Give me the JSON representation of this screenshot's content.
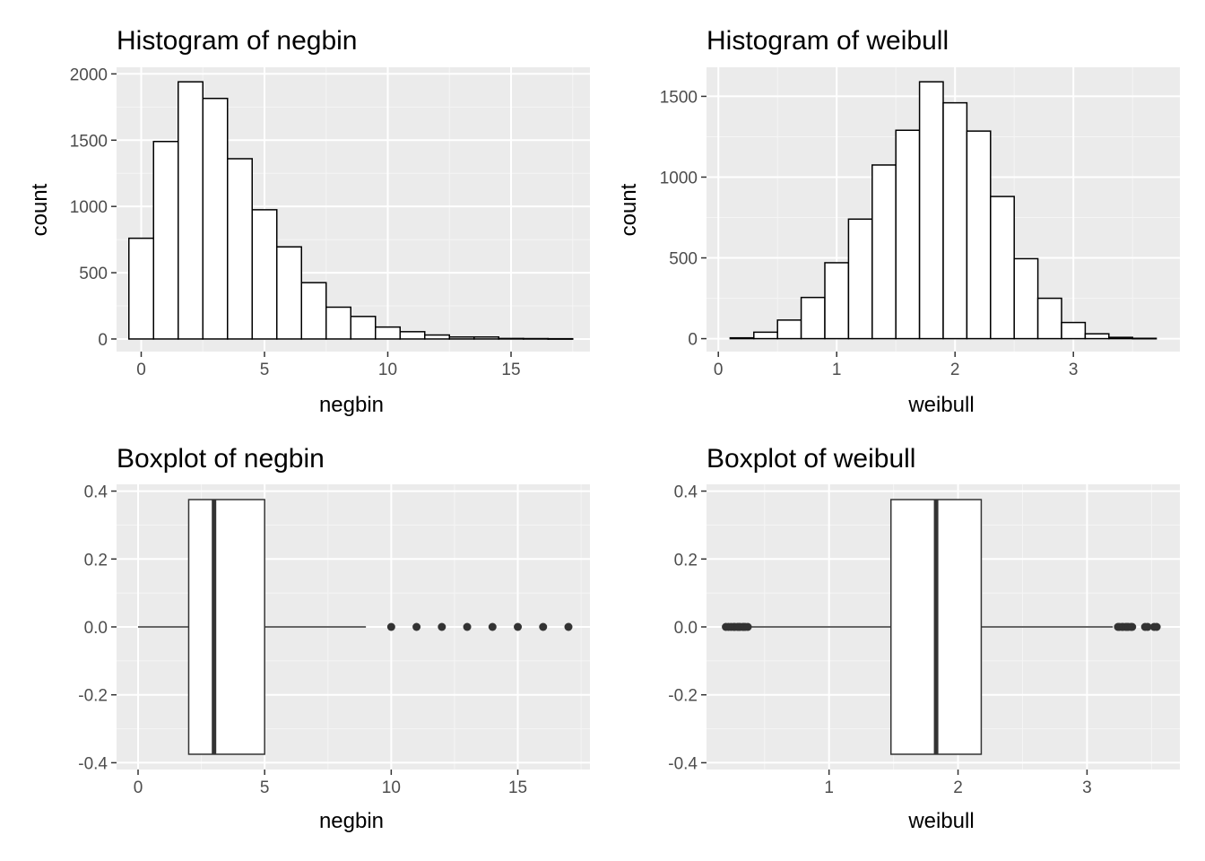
{
  "chart_data": [
    {
      "type": "histogram",
      "title": "Histogram of negbin",
      "xlabel": "negbin",
      "ylabel": "count",
      "xlim": [
        -1,
        18.2
      ],
      "ylim": [
        -95,
        2050
      ],
      "xticks": [
        0,
        5,
        10,
        15
      ],
      "yticks": [
        0,
        500,
        1000,
        1500,
        2000
      ],
      "binwidth": 1,
      "bins": [
        {
          "x": 0,
          "count": 760
        },
        {
          "x": 1,
          "count": 1490
        },
        {
          "x": 2,
          "count": 1940
        },
        {
          "x": 3,
          "count": 1815
        },
        {
          "x": 4,
          "count": 1360
        },
        {
          "x": 5,
          "count": 975
        },
        {
          "x": 6,
          "count": 695
        },
        {
          "x": 7,
          "count": 425
        },
        {
          "x": 8,
          "count": 240
        },
        {
          "x": 9,
          "count": 170
        },
        {
          "x": 10,
          "count": 90
        },
        {
          "x": 11,
          "count": 55
        },
        {
          "x": 12,
          "count": 30
        },
        {
          "x": 13,
          "count": 15
        },
        {
          "x": 14,
          "count": 15
        },
        {
          "x": 15,
          "count": 4
        },
        {
          "x": 16,
          "count": 3
        },
        {
          "x": 17,
          "count": 2
        }
      ],
      "grid": true,
      "fill": "#ffffff",
      "stroke": "#000000",
      "panel_bg": "#ebebeb"
    },
    {
      "type": "histogram",
      "title": "Histogram of weibull",
      "xlabel": "weibull",
      "ylabel": "count",
      "xlim": [
        -0.1,
        3.9
      ],
      "ylim": [
        -80,
        1680
      ],
      "xticks": [
        0,
        1,
        2,
        3
      ],
      "yticks": [
        0,
        500,
        1000,
        1500
      ],
      "binwidth": 0.2,
      "bins": [
        {
          "x": 0.2,
          "count": 5
        },
        {
          "x": 0.4,
          "count": 40
        },
        {
          "x": 0.6,
          "count": 115
        },
        {
          "x": 0.8,
          "count": 255
        },
        {
          "x": 1.0,
          "count": 470
        },
        {
          "x": 1.2,
          "count": 740
        },
        {
          "x": 1.4,
          "count": 1075
        },
        {
          "x": 1.6,
          "count": 1290
        },
        {
          "x": 1.8,
          "count": 1590
        },
        {
          "x": 2.0,
          "count": 1460
        },
        {
          "x": 2.2,
          "count": 1285
        },
        {
          "x": 2.4,
          "count": 880
        },
        {
          "x": 2.6,
          "count": 495
        },
        {
          "x": 2.8,
          "count": 250
        },
        {
          "x": 3.0,
          "count": 100
        },
        {
          "x": 3.2,
          "count": 30
        },
        {
          "x": 3.4,
          "count": 8
        },
        {
          "x": 3.6,
          "count": 2
        }
      ],
      "grid": true,
      "fill": "#ffffff",
      "stroke": "#000000",
      "panel_bg": "#ebebeb"
    },
    {
      "type": "boxplot",
      "title": "Boxplot of negbin",
      "xlabel": "negbin",
      "ylabel": "",
      "xlim": [
        -0.85,
        17.85
      ],
      "ylim": [
        -0.42,
        0.42
      ],
      "xticks": [
        0,
        5,
        10,
        15
      ],
      "yticks": [
        -0.4,
        -0.2,
        0.0,
        0.2,
        0.4
      ],
      "ytick_labels": [
        "-0.4",
        "-0.2",
        "0.0",
        "0.2",
        "0.4"
      ],
      "box": {
        "whisker_low": 0,
        "q1": 2,
        "median": 3,
        "q3": 5,
        "whisker_high": 9,
        "box_low": -0.375,
        "box_high": 0.375
      },
      "outliers": [
        10,
        11,
        12,
        13,
        14,
        15,
        16,
        17
      ],
      "grid": true,
      "panel_bg": "#ebebeb"
    },
    {
      "type": "boxplot",
      "title": "Boxplot of weibull",
      "xlabel": "weibull",
      "ylabel": "",
      "xlim": [
        0.05,
        3.72
      ],
      "ylim": [
        -0.42,
        0.42
      ],
      "xticks": [
        1,
        2,
        3
      ],
      "yticks": [
        -0.4,
        -0.2,
        0.0,
        0.2,
        0.4
      ],
      "ytick_labels": [
        "-0.4",
        "-0.2",
        "0.0",
        "0.2",
        "0.4"
      ],
      "box": {
        "whisker_low": 0.38,
        "q1": 1.48,
        "median": 1.83,
        "q3": 2.18,
        "whisker_high": 3.2,
        "box_low": -0.375,
        "box_high": 0.375
      },
      "outliers": [
        0.2,
        0.22,
        0.24,
        0.26,
        0.27,
        0.29,
        0.3,
        0.31,
        0.33,
        0.34,
        0.35,
        0.37,
        3.24,
        3.25,
        3.27,
        3.28,
        3.3,
        3.31,
        3.32,
        3.34,
        3.35,
        3.45,
        3.47,
        3.52,
        3.54
      ],
      "grid": true,
      "panel_bg": "#ebebeb"
    }
  ]
}
